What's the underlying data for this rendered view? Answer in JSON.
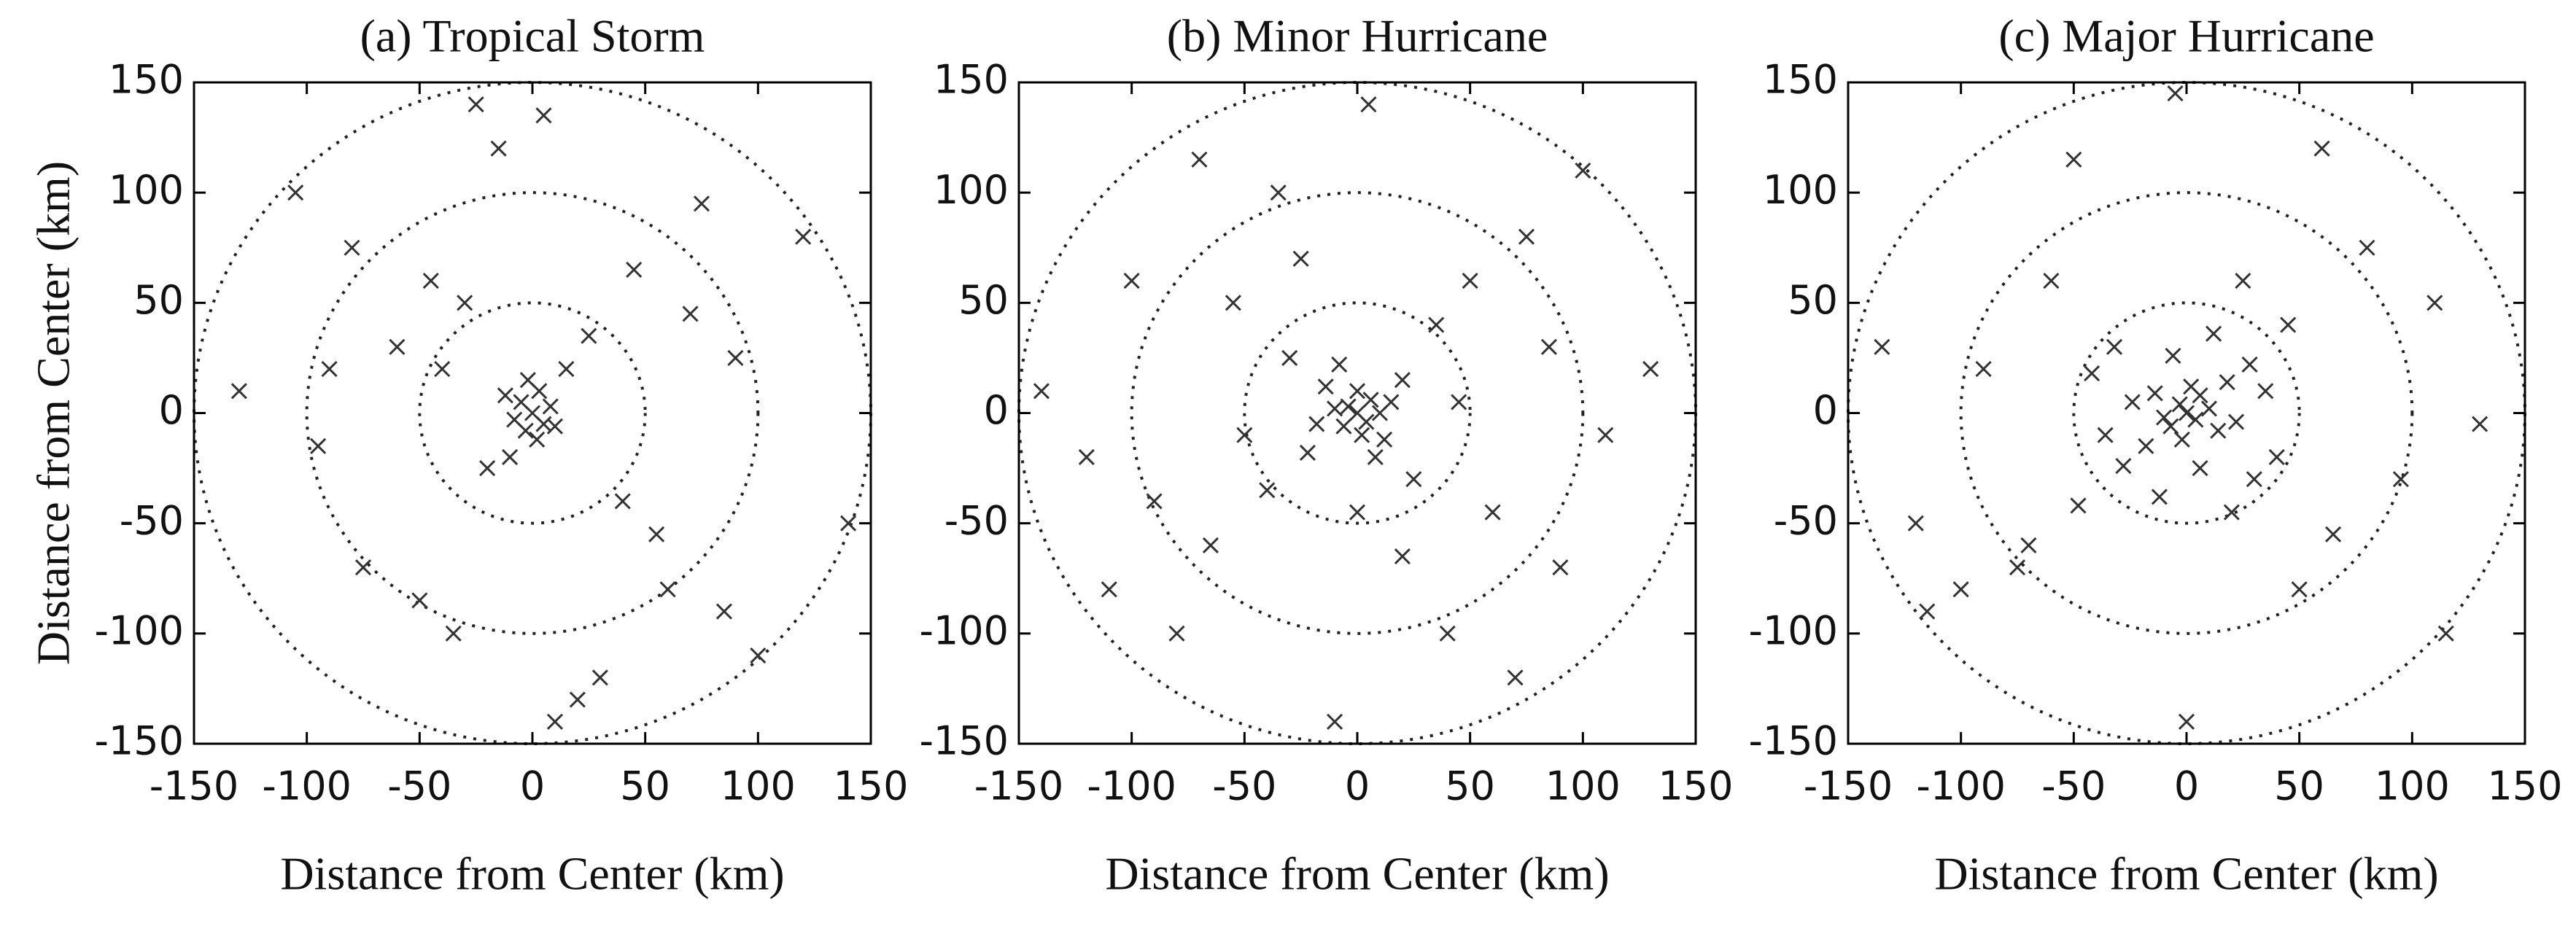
{
  "chart_data": [
    {
      "type": "scatter",
      "title": "(a) Tropical Storm",
      "xlabel": "Distance from Center  (km)",
      "ylabel": "Distance from Center  (km)",
      "marker": "x",
      "color": "#333333",
      "circles": [
        50,
        100,
        150
      ],
      "xlim": [
        -150,
        150
      ],
      "ylim": [
        -150,
        150
      ],
      "xticks": [
        -150,
        -100,
        -50,
        0,
        50,
        100,
        150
      ],
      "yticks": [
        -150,
        -100,
        -50,
        0,
        50,
        100,
        150
      ],
      "x": [
        0,
        -5,
        5,
        3,
        -3,
        8,
        -8,
        2,
        -2,
        10,
        -12,
        15,
        -20,
        25,
        -30,
        40,
        -45,
        55,
        -60,
        70,
        -75,
        85,
        -90,
        100,
        -105,
        120,
        -130,
        140,
        -15,
        20,
        -35,
        45,
        60,
        -50,
        75,
        -80,
        30,
        -25,
        10,
        -10,
        90,
        -95,
        5,
        -40
      ],
      "y": [
        0,
        5,
        -5,
        10,
        -8,
        3,
        -3,
        -12,
        15,
        -6,
        8,
        20,
        -25,
        35,
        50,
        -40,
        60,
        -55,
        30,
        45,
        -70,
        -90,
        20,
        -110,
        100,
        80,
        10,
        -50,
        120,
        -130,
        -100,
        65,
        -80,
        -85,
        95,
        75,
        -120,
        140,
        -140,
        -20,
        25,
        -15,
        135,
        20
      ]
    },
    {
      "type": "scatter",
      "title": "(b) Minor Hurricane",
      "xlabel": "Distance from Center  (km)",
      "marker": "x",
      "color": "#333333",
      "circles": [
        50,
        100,
        150
      ],
      "xlim": [
        -150,
        150
      ],
      "ylim": [
        -150,
        150
      ],
      "xticks": [
        -150,
        -100,
        -50,
        0,
        50,
        100,
        150
      ],
      "yticks": [
        -150,
        -100,
        -50,
        0,
        50,
        100,
        150
      ],
      "x": [
        0,
        -4,
        4,
        6,
        -6,
        10,
        -10,
        0,
        2,
        12,
        -14,
        15,
        -18,
        20,
        -22,
        8,
        -8,
        25,
        -30,
        35,
        -40,
        50,
        -55,
        60,
        -65,
        75,
        -80,
        90,
        -100,
        110,
        -120,
        130,
        -140,
        5,
        -10,
        40,
        -35,
        70,
        -70,
        100,
        -110,
        20,
        -25,
        45,
        -50,
        85,
        -90,
        0
      ],
      "y": [
        0,
        3,
        -4,
        6,
        -6,
        0,
        2,
        10,
        -10,
        -12,
        12,
        5,
        -5,
        15,
        -18,
        -20,
        22,
        -30,
        25,
        40,
        -35,
        60,
        50,
        -45,
        -60,
        80,
        -100,
        -70,
        60,
        -10,
        -20,
        20,
        10,
        140,
        -140,
        -100,
        100,
        -120,
        115,
        110,
        -80,
        -65,
        70,
        5,
        -10,
        30,
        -40,
        -45
      ]
    },
    {
      "type": "scatter",
      "title": "(c) Major Hurricane",
      "xlabel": "Distance from Center  (km)",
      "marker": "x",
      "color": "#333333",
      "circles": [
        50,
        100,
        150
      ],
      "xlim": [
        -150,
        150
      ],
      "ylim": [
        -150,
        150
      ],
      "xticks": [
        -150,
        -100,
        -50,
        0,
        50,
        100,
        150
      ],
      "yticks": [
        -150,
        -100,
        -50,
        0,
        50,
        100,
        150
      ],
      "x": [
        0,
        -3,
        4,
        6,
        -7,
        10,
        -10,
        2,
        -2,
        14,
        -14,
        18,
        -18,
        22,
        -24,
        6,
        -6,
        28,
        -28,
        30,
        -32,
        35,
        -36,
        12,
        -12,
        40,
        -42,
        45,
        -48,
        20,
        -60,
        65,
        -75,
        80,
        -90,
        95,
        -100,
        110,
        -120,
        130,
        -135,
        0,
        -5,
        60,
        -50,
        115,
        -115,
        50,
        -70,
        25
      ],
      "y": [
        0,
        4,
        -3,
        8,
        -6,
        2,
        -2,
        12,
        -12,
        -8,
        9,
        14,
        -15,
        -4,
        5,
        -25,
        26,
        22,
        -24,
        -30,
        30,
        10,
        -10,
        36,
        -38,
        -20,
        18,
        40,
        -42,
        -45,
        60,
        -55,
        -70,
        75,
        20,
        -30,
        -80,
        50,
        -50,
        -5,
        30,
        -140,
        145,
        120,
        115,
        -100,
        -90,
        -80,
        -60,
        60
      ]
    }
  ]
}
